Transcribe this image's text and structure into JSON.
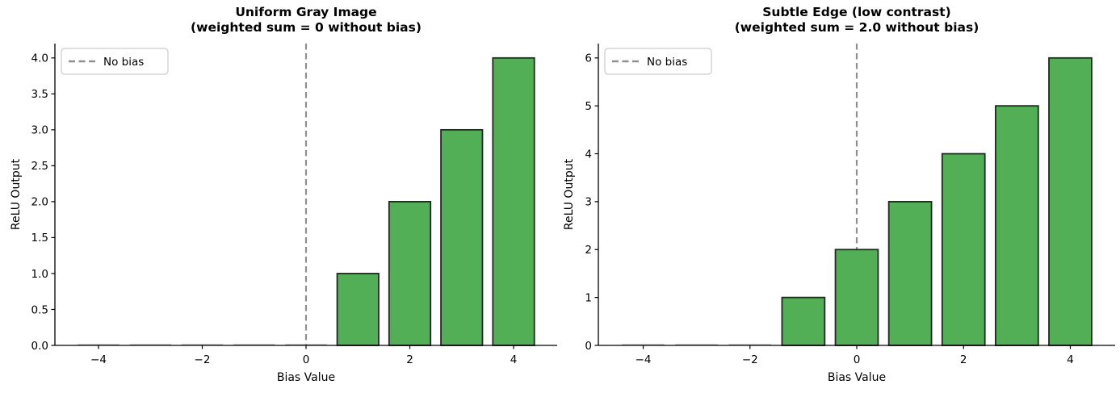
{
  "figure": {
    "background": "#ffffff"
  },
  "chart_data": [
    {
      "type": "bar",
      "title": "Uniform Gray Image",
      "subtitle": "(weighted sum = 0 without bias)",
      "xlabel": "Bias Value",
      "ylabel": "ReLU Output",
      "x": [
        -4,
        -3,
        -2,
        -1,
        0,
        1,
        2,
        3,
        4
      ],
      "values": [
        0,
        0,
        0,
        0,
        0,
        1,
        2,
        3,
        4
      ],
      "bar_width": 0.8,
      "xlim": [
        -4.84,
        4.84
      ],
      "ylim": [
        0,
        4.2
      ],
      "xtick_values": [
        -4,
        -2,
        0,
        2,
        4
      ],
      "xtick_labels": [
        "−4",
        "−2",
        "0",
        "2",
        "4"
      ],
      "ytick_values": [
        0,
        0.5,
        1,
        1.5,
        2,
        2.5,
        3,
        3.5,
        4
      ],
      "ytick_labels": [
        "0.0",
        "0.5",
        "1.0",
        "1.5",
        "2.0",
        "2.5",
        "3.0",
        "3.5",
        "4.0"
      ],
      "vline_x": 0,
      "legend_label": "No bias",
      "legend_position": "upper left",
      "grid": false,
      "colors": {
        "bar_fill": "#52af56",
        "bar_edge": "#262626",
        "vline": "#8f8f8f",
        "zero_bar_line": "#a9a9a9",
        "legend_border": "#cccccc",
        "spine": "#000000"
      }
    },
    {
      "type": "bar",
      "title": "Subtle Edge (low contrast)",
      "subtitle": "(weighted sum = 2.0 without bias)",
      "xlabel": "Bias Value",
      "ylabel": "ReLU Output",
      "x": [
        -4,
        -3,
        -2,
        -1,
        0,
        1,
        2,
        3,
        4
      ],
      "values": [
        0,
        0,
        0,
        1,
        2,
        3,
        4,
        5,
        6
      ],
      "bar_width": 0.8,
      "xlim": [
        -4.84,
        4.84
      ],
      "ylim": [
        0,
        6.3
      ],
      "xtick_values": [
        -4,
        -2,
        0,
        2,
        4
      ],
      "xtick_labels": [
        "−4",
        "−2",
        "0",
        "2",
        "4"
      ],
      "ytick_values": [
        0,
        1,
        2,
        3,
        4,
        5,
        6
      ],
      "ytick_labels": [
        "0",
        "1",
        "2",
        "3",
        "4",
        "5",
        "6"
      ],
      "vline_x": 0,
      "legend_label": "No bias",
      "legend_position": "upper left",
      "grid": false,
      "colors": {
        "bar_fill": "#52af56",
        "bar_edge": "#262626",
        "vline": "#8f8f8f",
        "zero_bar_line": "#a9a9a9",
        "legend_border": "#cccccc",
        "spine": "#000000"
      }
    }
  ]
}
